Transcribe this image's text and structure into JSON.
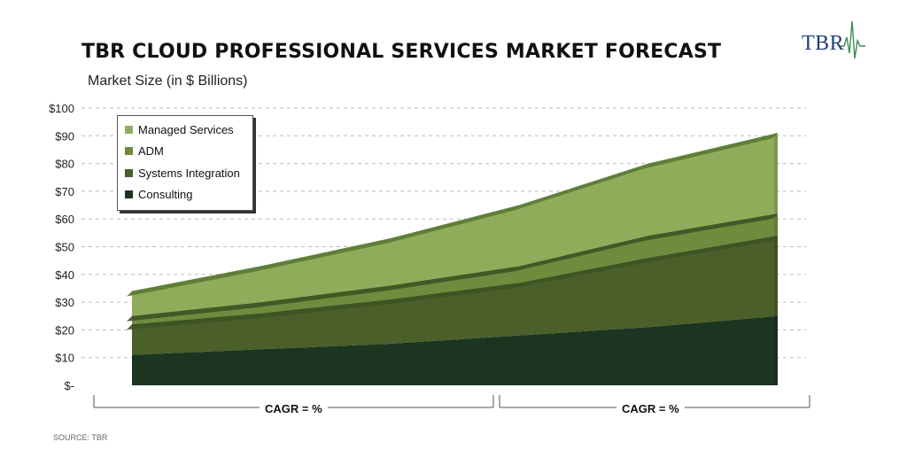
{
  "header": {
    "title": "TBR CLOUD PROFESSIONAL SERVICES MARKET FORECAST",
    "subtitle": "Market Size (in $ Billions)",
    "logo_text": "TBR"
  },
  "footer": {
    "source": "SOURCE: TBR"
  },
  "cagr_labels": [
    "CAGR = %",
    "CAGR = %"
  ],
  "colors": {
    "managed_services": "#8fac5a",
    "adm": "#6d8c3d",
    "systems_integration": "#4a5f2a",
    "consulting": "#1c3520",
    "top_edge": "#5a7a35"
  },
  "chart_data": {
    "type": "area",
    "stacked": true,
    "y_axis_ticks": [
      "$100",
      "$90",
      "$80",
      "$70",
      "$60",
      "$50",
      "$40",
      "$30",
      "$20",
      "$10",
      "$-"
    ],
    "ylim": [
      0,
      100
    ],
    "grid": true,
    "legend_position": "top-left",
    "x_points": 6,
    "series": [
      {
        "name": "Consulting",
        "values": [
          11,
          13,
          15,
          18,
          21,
          25
        ]
      },
      {
        "name": "Systems Integration",
        "values": [
          11,
          13,
          16,
          19,
          25,
          29
        ]
      },
      {
        "name": "ADM",
        "values": [
          3,
          4,
          5,
          6,
          8,
          8
        ]
      },
      {
        "name": "Managed Services",
        "values": [
          9,
          13,
          17,
          22,
          26,
          29
        ]
      }
    ]
  }
}
